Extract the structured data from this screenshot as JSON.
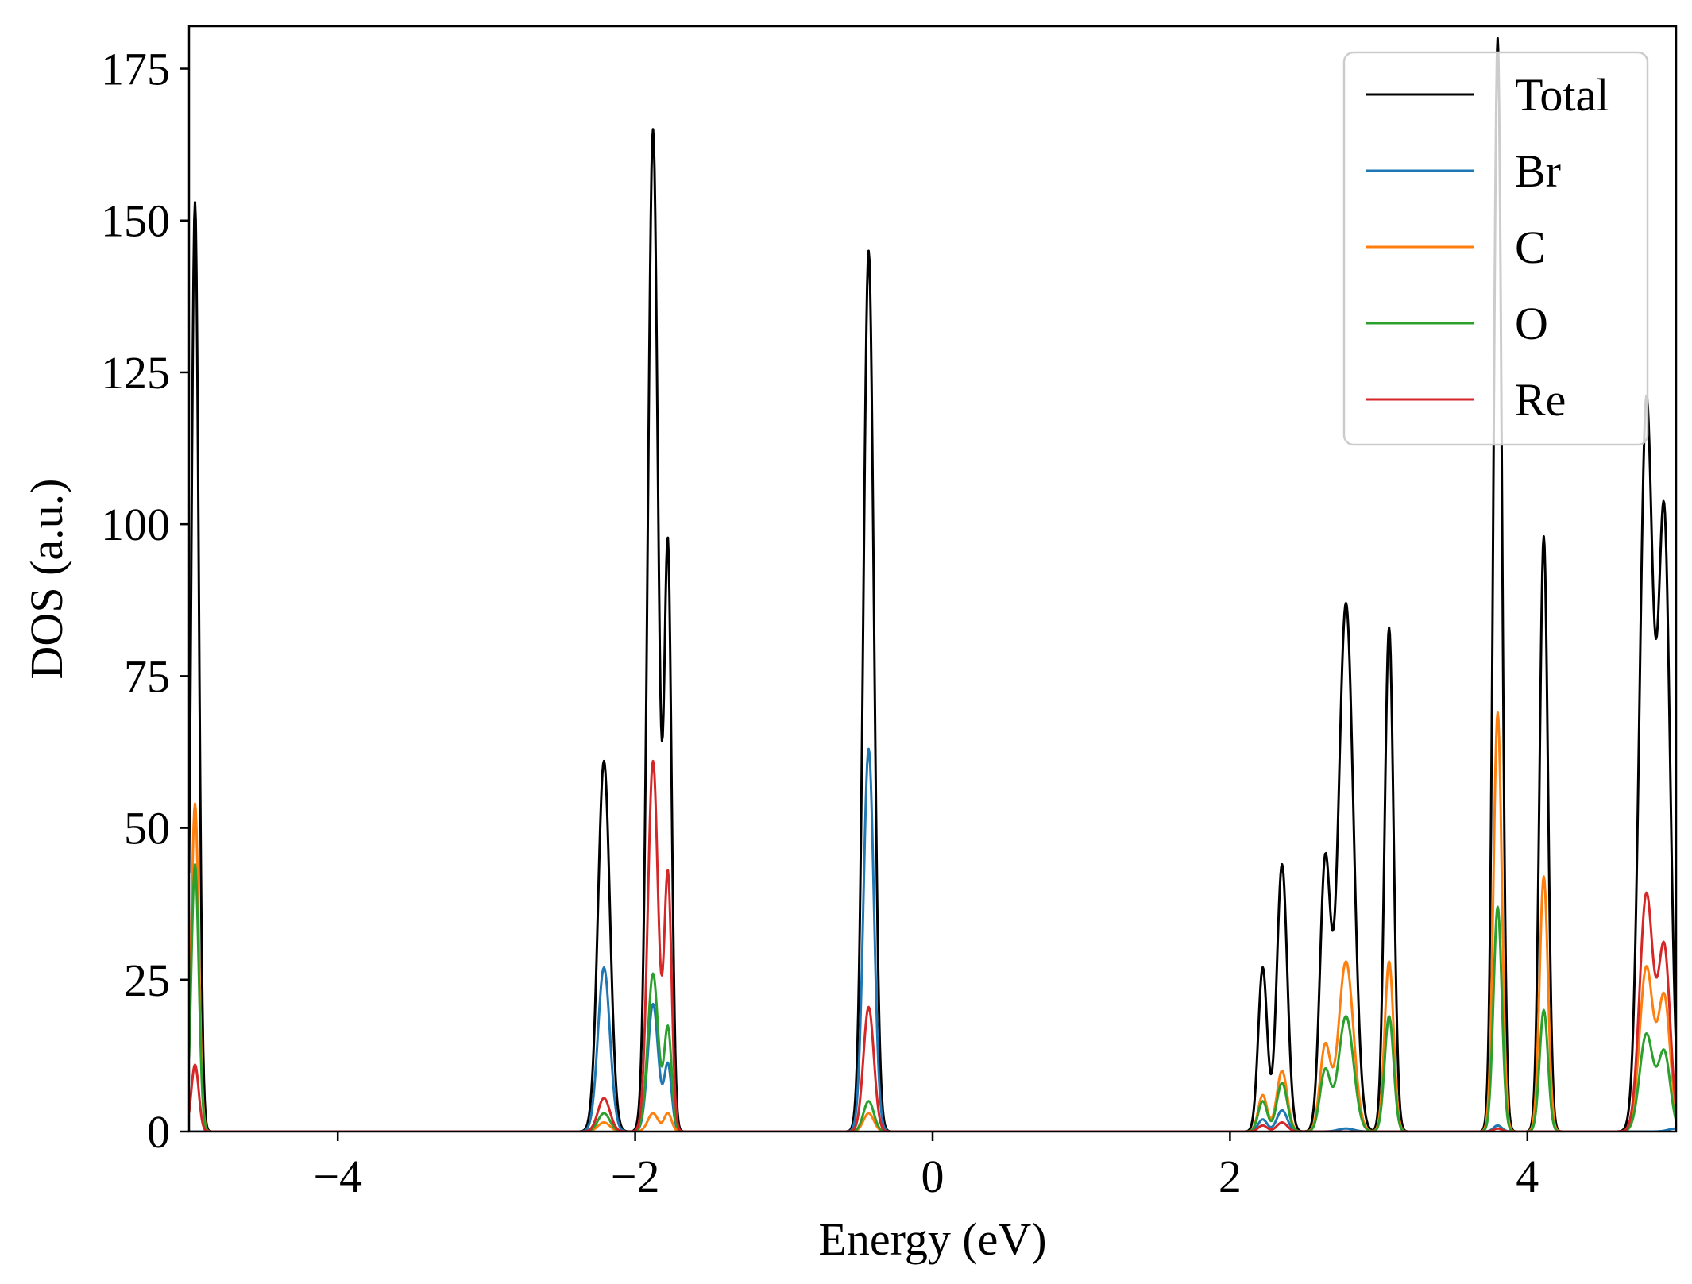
{
  "chart_data": {
    "type": "line",
    "title": "",
    "xlabel": "Energy (eV)",
    "ylabel": "DOS (a.u.)",
    "xlim": [
      -5,
      5
    ],
    "ylim": [
      0,
      182
    ],
    "x_ticks": [
      -4,
      -2,
      0,
      2,
      4
    ],
    "x_tick_labels": [
      "−4",
      "−2",
      "0",
      "2",
      "4"
    ],
    "y_ticks": [
      0,
      25,
      50,
      75,
      100,
      125,
      150,
      175
    ],
    "y_tick_labels": [
      "0",
      "25",
      "50",
      "75",
      "100",
      "125",
      "150",
      "175"
    ],
    "grid": false,
    "legend_position": "top-right",
    "series": [
      {
        "name": "Total",
        "color": "#000000",
        "peaks": [
          [
            -4.96,
            153,
            0.025
          ],
          [
            -2.21,
            61,
            0.04
          ],
          [
            -1.88,
            165,
            0.035
          ],
          [
            -1.78,
            95,
            0.025
          ],
          [
            -0.43,
            145,
            0.035
          ],
          [
            2.22,
            27,
            0.03
          ],
          [
            2.35,
            44,
            0.035
          ],
          [
            2.64,
            44,
            0.035
          ],
          [
            2.78,
            87,
            0.05
          ],
          [
            3.07,
            83,
            0.03
          ],
          [
            3.8,
            180,
            0.028
          ],
          [
            4.11,
            98,
            0.028
          ],
          [
            4.8,
            120,
            0.045
          ],
          [
            4.92,
            100,
            0.04
          ]
        ]
      },
      {
        "name": "Br",
        "color": "#1f77b4",
        "peaks": [
          [
            -2.21,
            27,
            0.04
          ],
          [
            -1.88,
            21,
            0.035
          ],
          [
            -1.78,
            11,
            0.025
          ],
          [
            -0.43,
            63,
            0.035
          ],
          [
            2.22,
            2,
            0.03
          ],
          [
            2.35,
            3.5,
            0.035
          ],
          [
            2.78,
            0.5,
            0.05
          ],
          [
            3.8,
            1,
            0.028
          ],
          [
            5.0,
            0.5,
            0.05
          ]
        ]
      },
      {
        "name": "C",
        "color": "#ff7f0e",
        "peaks": [
          [
            -4.96,
            54,
            0.025
          ],
          [
            -2.21,
            1.5,
            0.04
          ],
          [
            -1.88,
            3,
            0.035
          ],
          [
            -1.78,
            3,
            0.025
          ],
          [
            -0.43,
            3,
            0.035
          ],
          [
            2.22,
            6,
            0.03
          ],
          [
            2.35,
            10,
            0.035
          ],
          [
            2.64,
            14,
            0.035
          ],
          [
            2.78,
            28,
            0.05
          ],
          [
            3.07,
            28,
            0.03
          ],
          [
            3.8,
            69,
            0.028
          ],
          [
            4.11,
            42,
            0.028
          ],
          [
            4.8,
            27,
            0.045
          ],
          [
            4.92,
            22,
            0.04
          ]
        ]
      },
      {
        "name": "O",
        "color": "#2ca02c",
        "peaks": [
          [
            -4.96,
            44,
            0.025
          ],
          [
            -2.21,
            3,
            0.04
          ],
          [
            -1.88,
            26,
            0.035
          ],
          [
            -1.78,
            17,
            0.025
          ],
          [
            -0.43,
            5,
            0.035
          ],
          [
            2.22,
            5,
            0.03
          ],
          [
            2.35,
            8,
            0.035
          ],
          [
            2.64,
            10,
            0.035
          ],
          [
            2.78,
            19,
            0.05
          ],
          [
            3.07,
            19,
            0.03
          ],
          [
            3.8,
            37,
            0.028
          ],
          [
            4.11,
            20,
            0.028
          ],
          [
            4.8,
            16,
            0.045
          ],
          [
            4.92,
            13,
            0.04
          ]
        ]
      },
      {
        "name": "Re",
        "color": "#d62728",
        "peaks": [
          [
            -4.96,
            11,
            0.025
          ],
          [
            -2.21,
            5.5,
            0.04
          ],
          [
            -1.88,
            61,
            0.035
          ],
          [
            -1.78,
            42,
            0.025
          ],
          [
            -0.43,
            20.5,
            0.035
          ],
          [
            2.22,
            1,
            0.03
          ],
          [
            2.35,
            1.5,
            0.035
          ],
          [
            3.8,
            0.5,
            0.028
          ],
          [
            4.8,
            39,
            0.045
          ],
          [
            4.92,
            30,
            0.04
          ]
        ]
      }
    ]
  }
}
